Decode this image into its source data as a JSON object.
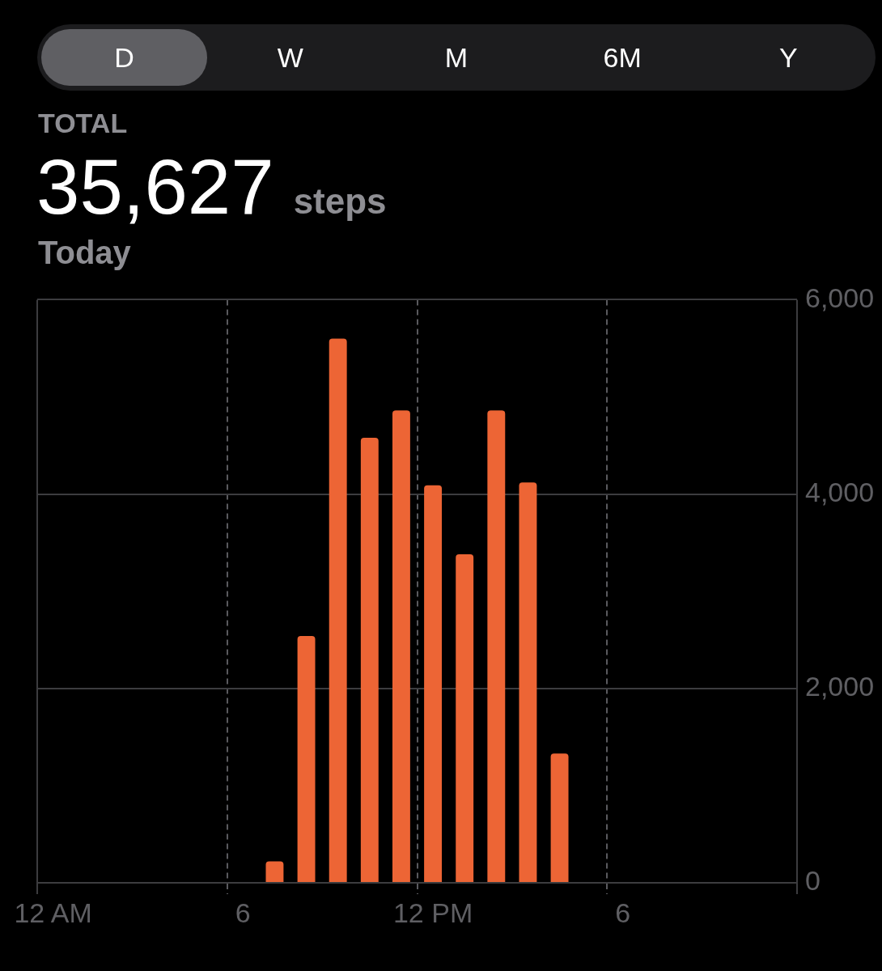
{
  "chart_data": {
    "type": "bar",
    "title": "35,627 steps",
    "subtitle": "Today",
    "annotations": [
      "D",
      "W",
      "M",
      "6M",
      "Y",
      "TOTAL"
    ],
    "categories": [
      "12 AM",
      null,
      null,
      null,
      null,
      null,
      "6",
      null,
      null,
      null,
      null,
      null,
      "12 PM",
      null,
      null,
      null,
      null,
      null,
      "6",
      null,
      null,
      null,
      null,
      null
    ],
    "values": [
      null,
      null,
      null,
      null,
      null,
      null,
      null,
      220,
      2540,
      5600,
      4580,
      4860,
      4090,
      3380,
      4860,
      4120,
      1330,
      null,
      null,
      null,
      null,
      null,
      null,
      null
    ],
    "color": "#ed6535",
    "ylim": [
      0,
      6000
    ],
    "yticks": [
      0,
      {
        "value": 2000,
        "label": "2,000"
      },
      {
        "value": 4000,
        "label": "4,000"
      },
      {
        "value": 6000,
        "label": "6,000"
      }
    ],
    "grid": true
  }
}
